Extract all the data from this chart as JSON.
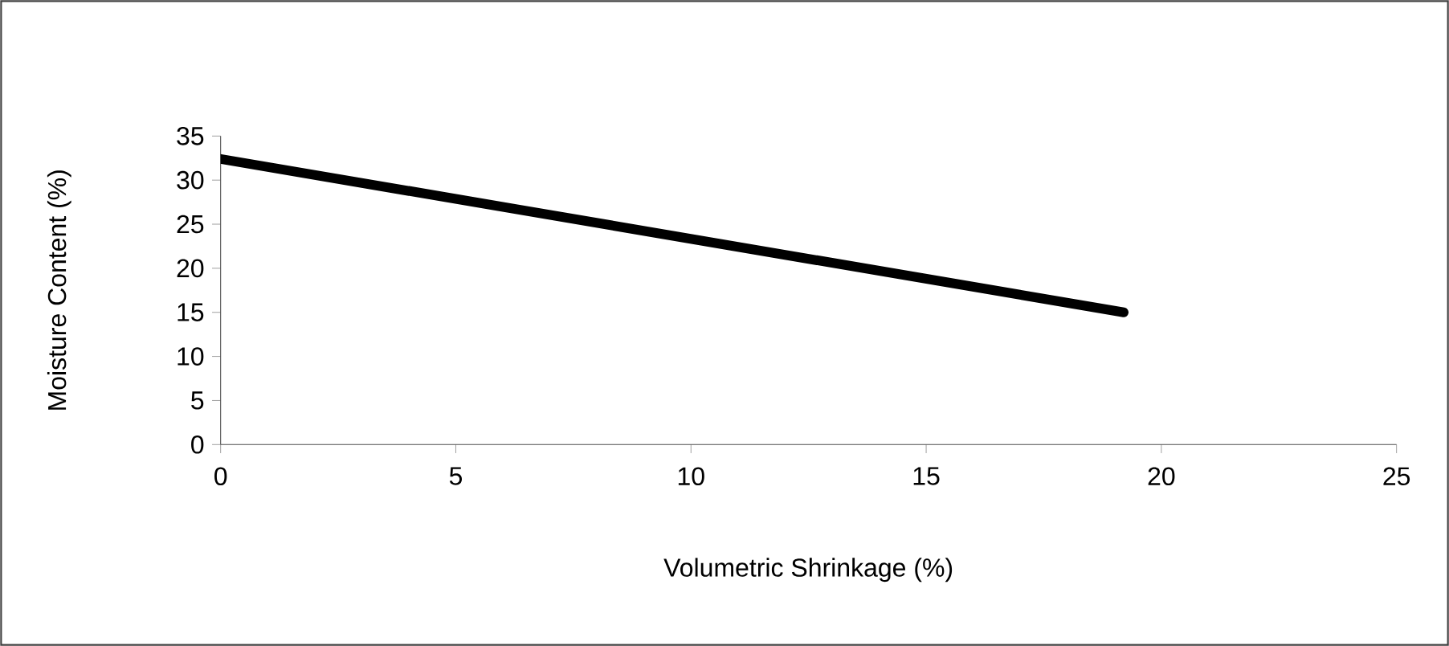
{
  "chart_data": {
    "type": "line",
    "xlabel": "Volumetric Shrinkage (%)",
    "ylabel": "Moisture Content (%)",
    "x": [
      0,
      19.2
    ],
    "series": [
      {
        "color": "#000000",
        "values": [
          32.4,
          15
        ]
      }
    ],
    "xlim": [
      0,
      25
    ],
    "ylim": [
      0,
      35
    ],
    "xticks": [
      0,
      5,
      10,
      15,
      20,
      25
    ],
    "yticks": [
      0,
      5,
      10,
      15,
      20,
      25,
      30,
      35
    ],
    "grid": false,
    "marker": "none",
    "line_style": "solid"
  }
}
